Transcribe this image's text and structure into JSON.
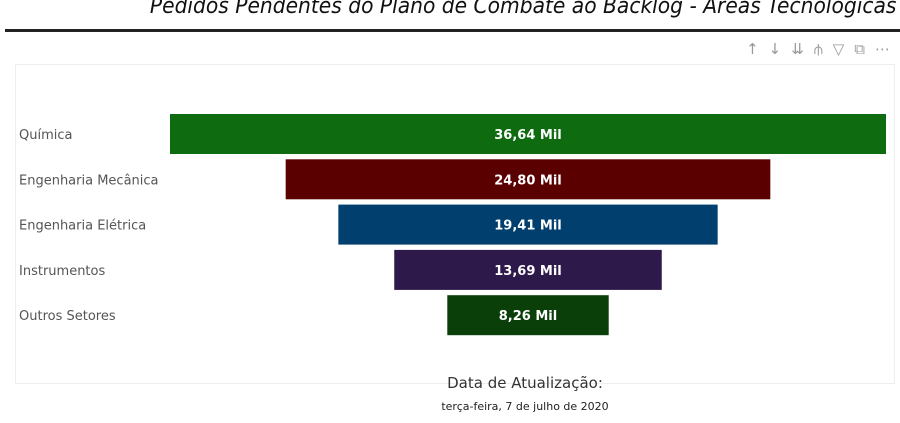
{
  "title": "Pedidos Pendentes do Plano de Combate ao Backlog - Áreas Tecnológicas",
  "toolbar": [
    {
      "icon": "arrow-up-icon",
      "glyph": "↑"
    },
    {
      "icon": "arrow-down-icon",
      "glyph": "↓"
    },
    {
      "icon": "double-arrow-down-icon",
      "glyph": "⇊"
    },
    {
      "icon": "expand-hierarchy-icon",
      "glyph": "⫛"
    },
    {
      "icon": "filter-icon",
      "glyph": "▽"
    },
    {
      "icon": "focus-mode-icon",
      "glyph": "⧉"
    },
    {
      "icon": "more-options-icon",
      "glyph": "⋯"
    }
  ],
  "update_label": "Data de Atualização:",
  "update_date": "terça-feira, 7 de julho de 2020",
  "chart_data": {
    "type": "funnel",
    "categories": [
      "Química",
      "Engenharia Mecânica",
      "Engenharia Elétrica",
      "Instrumentos",
      "Outros Setores"
    ],
    "values": [
      36.64,
      24.8,
      19.41,
      13.69,
      8.26
    ],
    "data_labels": [
      "36,64 Mil",
      "24,80 Mil",
      "19,41 Mil",
      "13,69 Mil",
      "8,26 Mil"
    ],
    "unit": "Mil",
    "colors": [
      "#0e6b10",
      "#5a0000",
      "#003f6e",
      "#2d1a4b",
      "#0b3f0a"
    ]
  }
}
